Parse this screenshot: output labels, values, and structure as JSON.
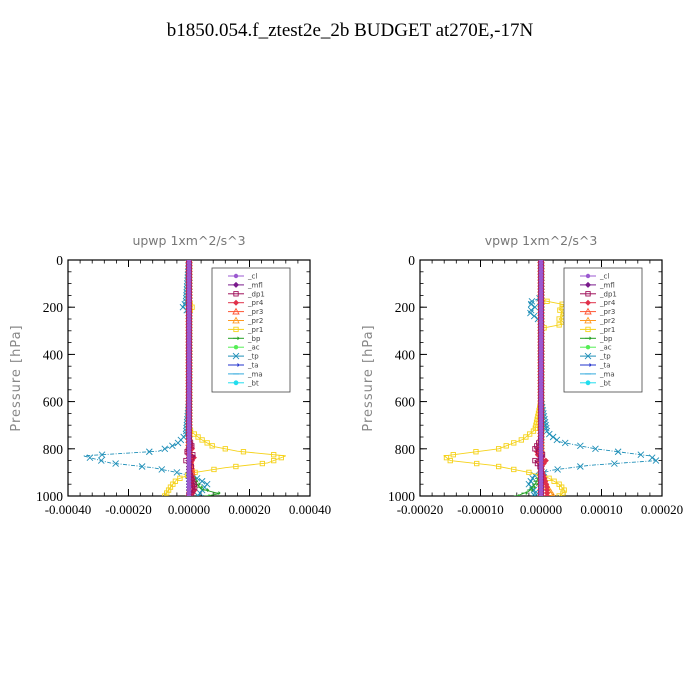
{
  "title": "b1850.054.f_ztest2e_2b  BUDGET at270E,-17N",
  "chart_data": [
    {
      "type": "line",
      "title": "upwp   1xm^2/s^3",
      "ylabel": "Pressure [hPa]",
      "xlim": [
        -0.0004,
        0.0004
      ],
      "ylim": [
        1000,
        0
      ],
      "yticks": [
        0,
        200,
        400,
        600,
        800,
        1000
      ],
      "ytick_labels": [
        "0",
        "200",
        "400",
        "600",
        "800",
        "1000"
      ],
      "xtick_values": [
        -0.0004,
        -0.0002,
        0,
        0.0002,
        0.0004
      ],
      "xtick_labels": [
        "-0.00040",
        "-0.00020",
        "0.00000",
        "0.00020",
        "0.00040"
      ],
      "legend_position": "upper-right",
      "grid": false,
      "series": [
        {
          "name": "_cl",
          "color": "#9b59d0",
          "marker": "circle",
          "points": [
            [
              0,
              0
            ],
            [
              0,
              100
            ],
            [
              0,
              200
            ],
            [
              0,
              300
            ],
            [
              0,
              400
            ],
            [
              0,
              500
            ],
            [
              0,
              600
            ],
            [
              0,
              700
            ],
            [
              0,
              800
            ],
            [
              0,
              900
            ],
            [
              0,
              1000
            ]
          ]
        },
        {
          "name": "_mfl",
          "color": "#7a1a8c",
          "marker": "diamond",
          "points": [
            [
              0,
              0
            ],
            [
              0,
              100
            ],
            [
              0,
              200
            ],
            [
              0,
              300
            ],
            [
              0,
              400
            ],
            [
              0,
              500
            ],
            [
              0,
              600
            ],
            [
              0,
              700
            ],
            [
              0,
              800
            ],
            [
              0,
              900
            ],
            [
              0,
              1000
            ]
          ]
        },
        {
          "name": "_dp1",
          "color": "#a0105a",
          "marker": "square",
          "points": [
            [
              0,
              0
            ],
            [
              0,
              200
            ],
            [
              0,
              400
            ],
            [
              0,
              600
            ],
            [
              0,
              760
            ],
            [
              1e-05,
              790
            ],
            [
              -1e-05,
              810
            ],
            [
              2e-05,
              830
            ],
            [
              -1e-05,
              850
            ],
            [
              1e-05,
              870
            ],
            [
              0,
              890
            ],
            [
              1e-05,
              930
            ],
            [
              2e-05,
              960
            ],
            [
              0,
              1000
            ]
          ]
        },
        {
          "name": "_pr4",
          "color": "#e0304a",
          "marker": "diamond",
          "points": [
            [
              0,
              0
            ],
            [
              0,
              200
            ],
            [
              0,
              400
            ],
            [
              0,
              600
            ],
            [
              0,
              770
            ],
            [
              1e-05,
              800
            ],
            [
              -1e-05,
              820
            ],
            [
              2e-05,
              840
            ],
            [
              0,
              860
            ],
            [
              0,
              900
            ],
            [
              1e-05,
              950
            ],
            [
              2e-05,
              980
            ],
            [
              0,
              1000
            ]
          ]
        },
        {
          "name": "_pr3",
          "color": "#ff5533",
          "marker": "triangle",
          "points": [
            [
              0,
              0
            ],
            [
              0,
              400
            ],
            [
              0,
              800
            ],
            [
              1e-05,
              900
            ],
            [
              0,
              1000
            ]
          ]
        },
        {
          "name": "_pr2",
          "color": "#ff9920",
          "marker": "triangle",
          "points": [
            [
              0,
              0
            ],
            [
              0,
              400
            ],
            [
              0,
              800
            ],
            [
              1e-05,
              900
            ],
            [
              0,
              1000
            ]
          ]
        },
        {
          "name": "_pr1",
          "color": "#f5d21a",
          "marker": "square",
          "points": [
            [
              0,
              0
            ],
            [
              0,
              180
            ],
            [
              1e-05,
              200
            ],
            [
              0,
              220
            ],
            [
              0,
              600
            ],
            [
              0,
              720
            ],
            [
              4e-05,
              760
            ],
            [
              8e-05,
              790
            ],
            [
              0.00016,
              810
            ],
            [
              0.00032,
              830
            ],
            [
              0.00026,
              860
            ],
            [
              0.00012,
              880
            ],
            [
              2e-05,
              900
            ],
            [
              -4e-05,
              930
            ],
            [
              -6e-05,
              960
            ],
            [
              -8e-05,
              1000
            ]
          ]
        },
        {
          "name": "_bp",
          "color": "#22a022",
          "marker": "arrow",
          "points": [
            [
              0,
              0
            ],
            [
              0,
              600
            ],
            [
              0,
              900
            ],
            [
              2e-05,
              940
            ],
            [
              4e-05,
              970
            ],
            [
              0.0001,
              990
            ],
            [
              6e-05,
              1000
            ]
          ]
        },
        {
          "name": "_ac",
          "color": "#55ee55",
          "marker": "circle",
          "points": [
            [
              0,
              0
            ],
            [
              0,
              1000
            ]
          ]
        },
        {
          "name": "_tp",
          "color": "#1f8fb8",
          "marker": "cross",
          "points": [
            [
              0,
              0
            ],
            [
              -1e-05,
              180
            ],
            [
              -2e-05,
              200
            ],
            [
              0,
              220
            ],
            [
              0,
              600
            ],
            [
              -1e-05,
              740
            ],
            [
              -4e-05,
              780
            ],
            [
              -0.0001,
              810
            ],
            [
              -0.00035,
              830
            ],
            [
              -0.00026,
              860
            ],
            [
              -0.00012,
              880
            ],
            [
              -4e-05,
              900
            ],
            [
              2e-05,
              920
            ],
            [
              6e-05,
              950
            ],
            [
              4e-05,
              980
            ],
            [
              3e-05,
              1000
            ]
          ]
        },
        {
          "name": "_ta",
          "color": "#2233cc",
          "marker": "arrow",
          "points": [
            [
              0,
              0
            ],
            [
              0,
              1000
            ]
          ]
        },
        {
          "name": "_ma",
          "color": "#33aadd",
          "marker": "dash",
          "points": [
            [
              0,
              0
            ],
            [
              0,
              1000
            ]
          ]
        },
        {
          "name": "_bt",
          "color": "#22ddee",
          "marker": "hexagon",
          "points": [
            [
              0,
              0
            ],
            [
              0,
              1000
            ]
          ]
        }
      ]
    },
    {
      "type": "line",
      "title": "vpwp   1xm^2/s^3",
      "ylabel": "Pressure [hPa]",
      "xlim": [
        -0.0002,
        0.0002
      ],
      "ylim": [
        1000,
        0
      ],
      "yticks": [
        0,
        200,
        400,
        600,
        800,
        1000
      ],
      "ytick_labels": [
        "0",
        "200",
        "400",
        "600",
        "800",
        "1000"
      ],
      "xtick_values": [
        -0.0002,
        -0.0001,
        0,
        0.0001,
        0.0002
      ],
      "xtick_labels": [
        "-0.00020",
        "-0.00010",
        "0.00000",
        "0.00010",
        "0.00020"
      ],
      "legend_position": "upper-right",
      "grid": false,
      "series": [
        {
          "name": "_cl",
          "color": "#9b59d0",
          "marker": "circle",
          "points": [
            [
              0,
              0
            ],
            [
              0,
              100
            ],
            [
              0,
              200
            ],
            [
              0,
              300
            ],
            [
              0,
              400
            ],
            [
              0,
              500
            ],
            [
              0,
              600
            ],
            [
              0,
              700
            ],
            [
              0,
              800
            ],
            [
              0,
              900
            ],
            [
              0,
              1000
            ]
          ]
        },
        {
          "name": "_mfl",
          "color": "#7a1a8c",
          "marker": "diamond",
          "points": [
            [
              0,
              0
            ],
            [
              0,
              100
            ],
            [
              0,
              200
            ],
            [
              0,
              300
            ],
            [
              0,
              400
            ],
            [
              0,
              500
            ],
            [
              0,
              600
            ],
            [
              0,
              700
            ],
            [
              0,
              800
            ],
            [
              0,
              900
            ],
            [
              0,
              1000
            ]
          ]
        },
        {
          "name": "_dp1",
          "color": "#a0105a",
          "marker": "square",
          "points": [
            [
              0,
              0
            ],
            [
              0,
              400
            ],
            [
              0,
              760
            ],
            [
              -1e-05,
              800
            ],
            [
              5e-06,
              830
            ],
            [
              -1e-05,
              850
            ],
            [
              0,
              880
            ],
            [
              0,
              1000
            ]
          ]
        },
        {
          "name": "_pr4",
          "color": "#e0304a",
          "marker": "diamond",
          "points": [
            [
              0,
              0
            ],
            [
              0,
              400
            ],
            [
              0,
              780
            ],
            [
              -8e-06,
              820
            ],
            [
              8e-06,
              850
            ],
            [
              0,
              880
            ],
            [
              1e-05,
              960
            ],
            [
              1e-05,
              1000
            ]
          ]
        },
        {
          "name": "_pr3",
          "color": "#ff5533",
          "marker": "triangle",
          "points": [
            [
              0,
              0
            ],
            [
              0,
              1000
            ]
          ]
        },
        {
          "name": "_pr2",
          "color": "#ff9920",
          "marker": "triangle",
          "points": [
            [
              0,
              0
            ],
            [
              0,
              900
            ],
            [
              1e-05,
              960
            ],
            [
              2e-05,
              1000
            ]
          ]
        },
        {
          "name": "_pr1",
          "color": "#f5d21a",
          "marker": "square",
          "points": [
            [
              0,
              0
            ],
            [
              0,
              170
            ],
            [
              4e-05,
              190
            ],
            [
              3e-05,
              210
            ],
            [
              4e-05,
              230
            ],
            [
              3e-05,
              250
            ],
            [
              4e-05,
              270
            ],
            [
              0,
              290
            ],
            [
              0,
              600
            ],
            [
              -1e-05,
              720
            ],
            [
              -3e-05,
              760
            ],
            [
              -7e-05,
              800
            ],
            [
              -0.00016,
              830
            ],
            [
              -0.00015,
              850
            ],
            [
              -8e-05,
              870
            ],
            [
              -2e-05,
              900
            ],
            [
              1e-05,
              920
            ],
            [
              3e-05,
              950
            ],
            [
              4e-05,
              980
            ],
            [
              3e-05,
              1000
            ]
          ]
        },
        {
          "name": "_bp",
          "color": "#22a022",
          "marker": "arrow",
          "points": [
            [
              0,
              0
            ],
            [
              0,
              900
            ],
            [
              -1e-05,
              950
            ],
            [
              -2e-05,
              980
            ],
            [
              -4e-05,
              1000
            ]
          ]
        },
        {
          "name": "_ac",
          "color": "#55ee55",
          "marker": "circle",
          "points": [
            [
              0,
              0
            ],
            [
              0,
              1000
            ]
          ]
        },
        {
          "name": "_tp",
          "color": "#1f8fb8",
          "marker": "cross",
          "points": [
            [
              0,
              0
            ],
            [
              0,
              160
            ],
            [
              -2e-05,
              180
            ],
            [
              -1e-05,
              200
            ],
            [
              -2e-05,
              220
            ],
            [
              -1e-05,
              240
            ],
            [
              0,
              260
            ],
            [
              0,
              600
            ],
            [
              1e-05,
              730
            ],
            [
              3e-05,
              770
            ],
            [
              9e-05,
              800
            ],
            [
              0.00018,
              830
            ],
            [
              0.00019,
              850
            ],
            [
              8e-05,
              870
            ],
            [
              2e-05,
              890
            ],
            [
              -1e-05,
              910
            ],
            [
              -2e-05,
              950
            ],
            [
              -1e-05,
              980
            ],
            [
              -1e-05,
              1000
            ]
          ]
        },
        {
          "name": "_ta",
          "color": "#2233cc",
          "marker": "arrow",
          "points": [
            [
              0,
              0
            ],
            [
              0,
              1000
            ]
          ]
        },
        {
          "name": "_ma",
          "color": "#33aadd",
          "marker": "dash",
          "points": [
            [
              0,
              0
            ],
            [
              0,
              1000
            ]
          ]
        },
        {
          "name": "_bt",
          "color": "#22ddee",
          "marker": "hexagon",
          "points": [
            [
              0,
              0
            ],
            [
              0,
              1000
            ]
          ]
        }
      ]
    }
  ]
}
